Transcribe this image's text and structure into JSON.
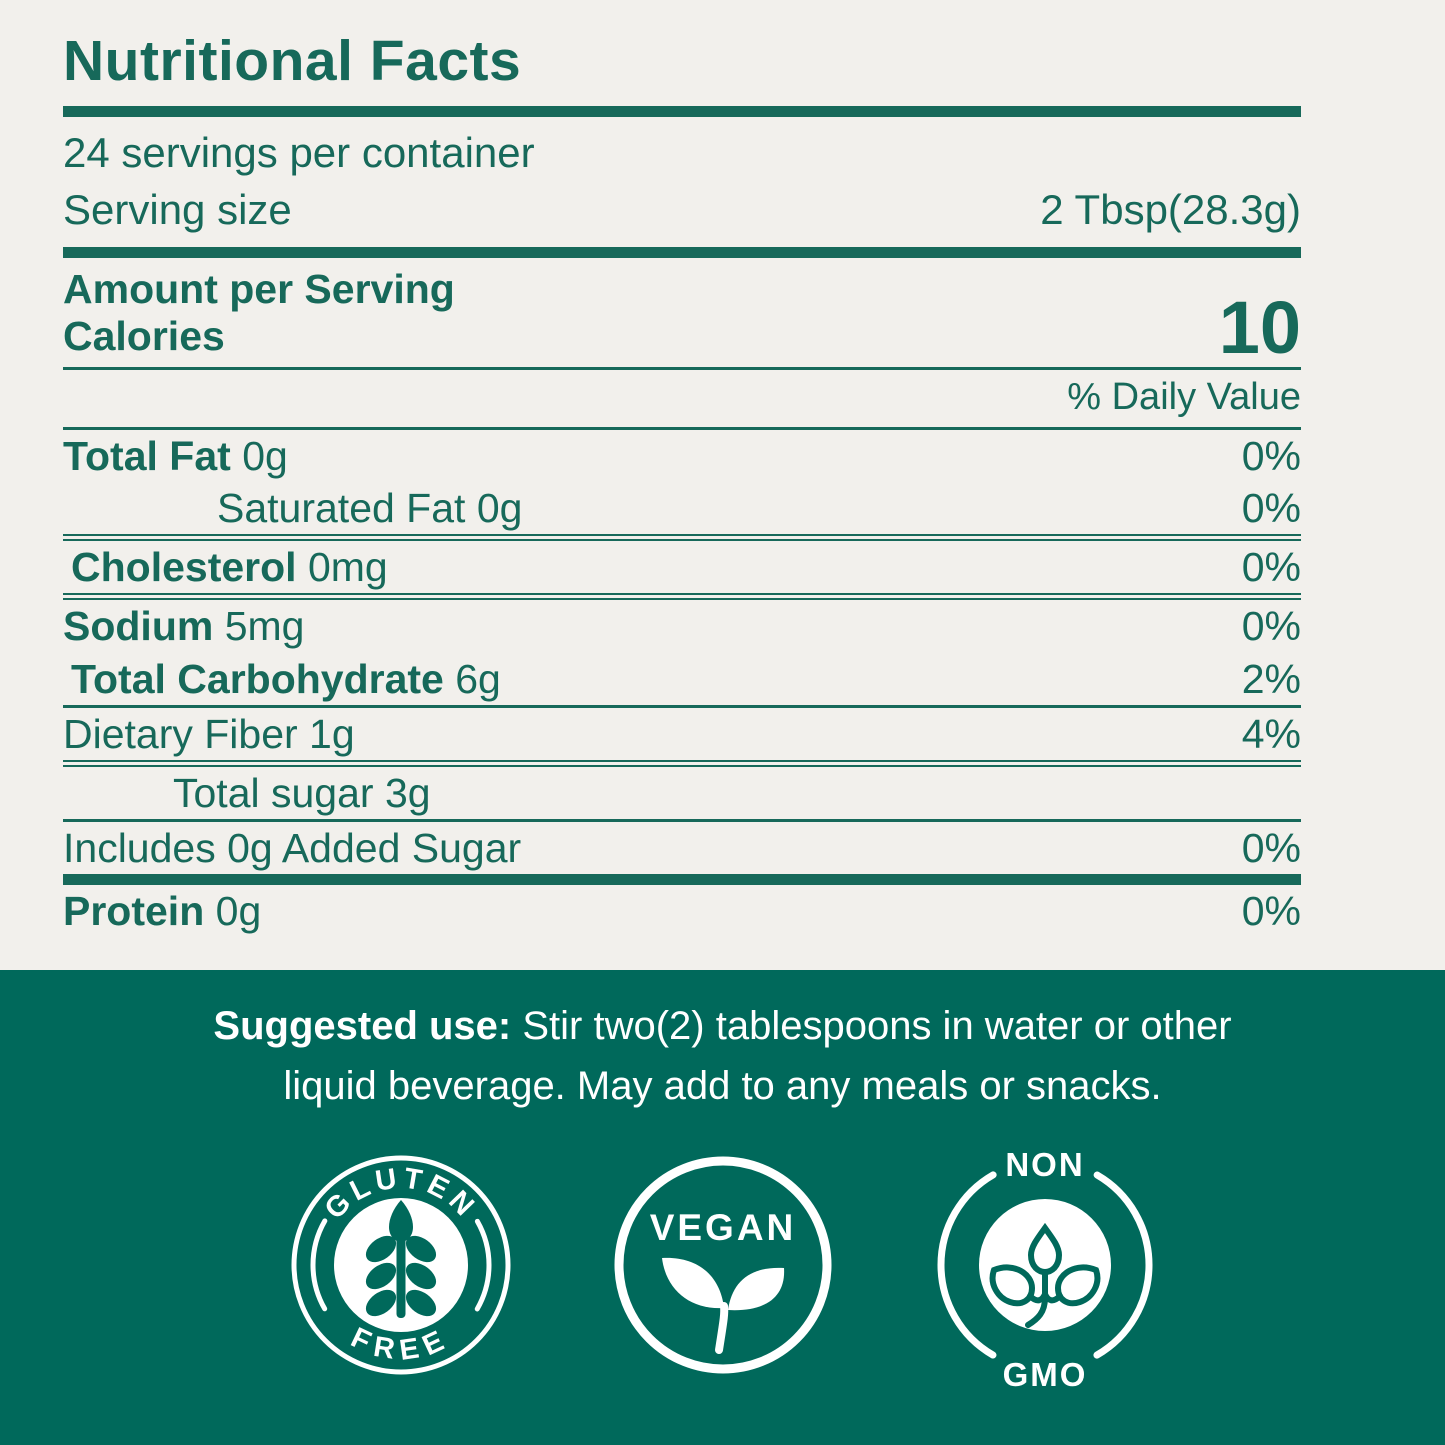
{
  "colors": {
    "background_cream": "#f2f0ec",
    "green_text": "#17695a",
    "green_background": "#00695b",
    "white": "#ffffff"
  },
  "panel": {
    "title": "Nutritional Facts",
    "servings_per_container": "24 servings per container",
    "serving_size_label": "Serving size",
    "serving_size_value": "2 Tbsp(28.3g)",
    "amount_per_serving": "Amount per Serving",
    "calories_label": "Calories",
    "calories_value": "10",
    "daily_value_header": "% Daily Value",
    "rows": [
      {
        "bold": "Total Fat",
        "text": " 0g",
        "pct": "0%",
        "indent": 0,
        "rule": "none"
      },
      {
        "bold": "",
        "text": "Saturated Fat 0g",
        "pct": "0%",
        "indent": 2,
        "rule": "double"
      },
      {
        "bold": "Cholesterol",
        "text": " 0mg",
        "pct": "0%",
        "indent": 3,
        "rule": "double"
      },
      {
        "bold": "Sodium",
        "text": " 5mg",
        "pct": "0%",
        "indent": 0,
        "rule": "none"
      },
      {
        "bold": "Total Carbohydrate",
        "text": " 6g",
        "pct": "2%",
        "indent": 3,
        "rule": "thin"
      },
      {
        "bold": "",
        "text": "Dietary Fiber 1g",
        "pct": "4%",
        "indent": 0,
        "rule": "double"
      },
      {
        "bold": "",
        "text": "Total sugar 3g",
        "pct": "",
        "indent": 1,
        "rule": "thin"
      },
      {
        "bold": "",
        "text": "Includes 0g Added Sugar",
        "pct": "0%",
        "indent": 0,
        "rule": "thick"
      },
      {
        "bold": "Protein",
        "text": " 0g",
        "pct": "0%",
        "indent": 0,
        "rule": "none"
      }
    ]
  },
  "suggested_use": {
    "label": "Suggested use:",
    "line1_rest": " Stir two(2) tablespoons in water or other",
    "line2": "liquid beverage. May add to any meals or snacks."
  },
  "badges": {
    "gluten_free": {
      "top": "GLUTEN",
      "bottom": "FREE"
    },
    "vegan": {
      "label": "VEGAN"
    },
    "non_gmo": {
      "top": "NON",
      "bottom": "GMO"
    }
  }
}
